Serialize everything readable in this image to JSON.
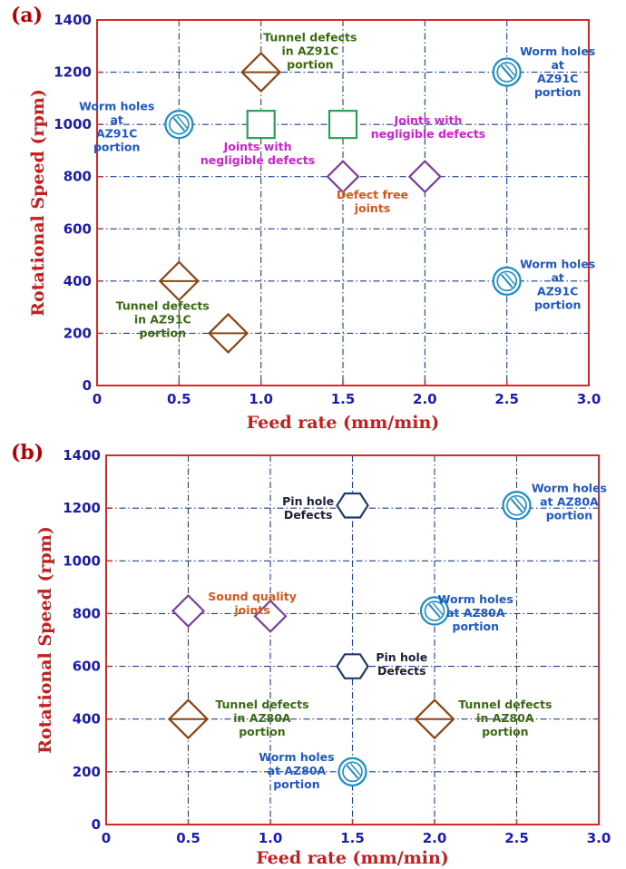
{
  "chart_data": [
    {
      "type": "scatter",
      "panel_label": "(a)",
      "xlabel": "Feed rate (mm/min)",
      "ylabel": "Rotational Speed (rpm)",
      "xlim": [
        0,
        3.0
      ],
      "ylim": [
        0,
        1400
      ],
      "x_ticks": [
        "0",
        "0.5",
        "1.0",
        "1.5",
        "2.0",
        "2.5",
        "3.0"
      ],
      "y_ticks": [
        "0",
        "200",
        "400",
        "600",
        "800",
        "1000",
        "1200",
        "1400"
      ],
      "grid": true,
      "points": [
        {
          "x": 1.0,
          "y": 1200,
          "marker": "diamond-line",
          "color": "#8b4513"
        },
        {
          "x": 0.5,
          "y": 400,
          "marker": "diamond-line",
          "color": "#8b4513"
        },
        {
          "x": 0.8,
          "y": 200,
          "marker": "diamond-line",
          "color": "#8b4513"
        },
        {
          "x": 1.0,
          "y": 1000,
          "marker": "square",
          "color": "#2e9e5b"
        },
        {
          "x": 1.5,
          "y": 1000,
          "marker": "square",
          "color": "#2e9e5b"
        },
        {
          "x": 1.5,
          "y": 800,
          "marker": "diamond",
          "color": "#7b3fa0"
        },
        {
          "x": 2.0,
          "y": 800,
          "marker": "diamond",
          "color": "#7b3fa0"
        },
        {
          "x": 0.5,
          "y": 1000,
          "marker": "wormhole",
          "color": "#1a8cc7"
        },
        {
          "x": 2.5,
          "y": 1200,
          "marker": "wormhole",
          "color": "#1a8cc7"
        },
        {
          "x": 2.5,
          "y": 400,
          "marker": "wormhole",
          "color": "#1a8cc7"
        }
      ],
      "annotations": [
        {
          "lines": [
            "Tunnel defects",
            "in AZ91C",
            "portion"
          ],
          "x": 1.3,
          "y": 1318,
          "color": "#3a6b12"
        },
        {
          "lines": [
            "Worm holes",
            "at",
            "AZ91C",
            "portion"
          ],
          "x": 0.12,
          "y": 1055,
          "color": "#1f57c9"
        },
        {
          "lines": [
            "Worm holes",
            "at",
            "AZ91C",
            "portion"
          ],
          "x": 2.81,
          "y": 1265,
          "color": "#1f57c9"
        },
        {
          "lines": [
            "Worm holes",
            "at",
            "AZ91C",
            "portion"
          ],
          "x": 2.81,
          "y": 450,
          "color": "#1f57c9"
        },
        {
          "lines": [
            "Joints with",
            "negligible defects"
          ],
          "x": 0.98,
          "y": 900,
          "color": "#d11fd1"
        },
        {
          "lines": [
            "Joints with",
            "negligible defects"
          ],
          "x": 2.02,
          "y": 1000,
          "color": "#d11fd1"
        },
        {
          "lines": [
            "Defect free",
            "joints"
          ],
          "x": 1.68,
          "y": 715,
          "color": "#d9561a"
        },
        {
          "lines": [
            "Tunnel defects",
            "in AZ91C",
            "portion"
          ],
          "x": 0.4,
          "y": 290,
          "color": "#3a6b12"
        }
      ]
    },
    {
      "type": "scatter",
      "panel_label": "(b)",
      "xlabel": "Feed rate (mm/min)",
      "ylabel": "Rotational Speed (rpm)",
      "xlim": [
        0,
        3.0
      ],
      "ylim": [
        0,
        1400
      ],
      "x_ticks": [
        "0",
        "0.5",
        "1.0",
        "1.5",
        "2.0",
        "2.5",
        "3.0"
      ],
      "y_ticks": [
        "0",
        "200",
        "400",
        "600",
        "800",
        "1000",
        "1200",
        "1400"
      ],
      "grid": true,
      "points": [
        {
          "x": 1.5,
          "y": 1210,
          "marker": "hexagon",
          "color": "#1e3a6e"
        },
        {
          "x": 1.5,
          "y": 600,
          "marker": "hexagon",
          "color": "#1e3a6e"
        },
        {
          "x": 0.5,
          "y": 810,
          "marker": "diamond",
          "color": "#7b3fa0"
        },
        {
          "x": 1.0,
          "y": 790,
          "marker": "diamond",
          "color": "#7b3fa0"
        },
        {
          "x": 0.5,
          "y": 400,
          "marker": "diamond-line",
          "color": "#8b4513"
        },
        {
          "x": 2.0,
          "y": 400,
          "marker": "diamond-line",
          "color": "#8b4513"
        },
        {
          "x": 2.5,
          "y": 1210,
          "marker": "wormhole",
          "color": "#1a8cc7"
        },
        {
          "x": 2.0,
          "y": 810,
          "marker": "wormhole",
          "color": "#1a8cc7"
        },
        {
          "x": 1.5,
          "y": 200,
          "marker": "wormhole",
          "color": "#1a8cc7"
        }
      ],
      "annotations": [
        {
          "lines": [
            "Pin hole",
            "Defects"
          ],
          "x": 1.23,
          "y": 1210,
          "color": "#1e1e3c"
        },
        {
          "lines": [
            "Worm holes",
            "at AZ80A",
            "portion"
          ],
          "x": 2.82,
          "y": 1260,
          "color": "#1f57c9"
        },
        {
          "lines": [
            "Sound quality",
            "joints"
          ],
          "x": 0.89,
          "y": 850,
          "color": "#d9561a"
        },
        {
          "lines": [
            "Worm holes",
            "at AZ80A",
            "portion"
          ],
          "x": 2.25,
          "y": 840,
          "color": "#1f57c9"
        },
        {
          "lines": [
            "Pin hole",
            "Defects"
          ],
          "x": 1.8,
          "y": 620,
          "color": "#1e1e3c"
        },
        {
          "lines": [
            "Tunnel defects",
            "in AZ80A",
            "portion"
          ],
          "x": 0.95,
          "y": 440,
          "color": "#3a6b12"
        },
        {
          "lines": [
            "Tunnel defects",
            "in AZ80A",
            "portion"
          ],
          "x": 2.43,
          "y": 440,
          "color": "#3a6b12"
        },
        {
          "lines": [
            "Worm holes",
            "at AZ80A",
            "portion"
          ],
          "x": 1.16,
          "y": 240,
          "color": "#1f57c9"
        }
      ]
    }
  ],
  "colors": {
    "frame": "#d42a2a",
    "grid": "#1f3d99",
    "tick_label": "#1b1bb5",
    "axis_title": "#c41e1e",
    "panel_label": "#b30000"
  }
}
